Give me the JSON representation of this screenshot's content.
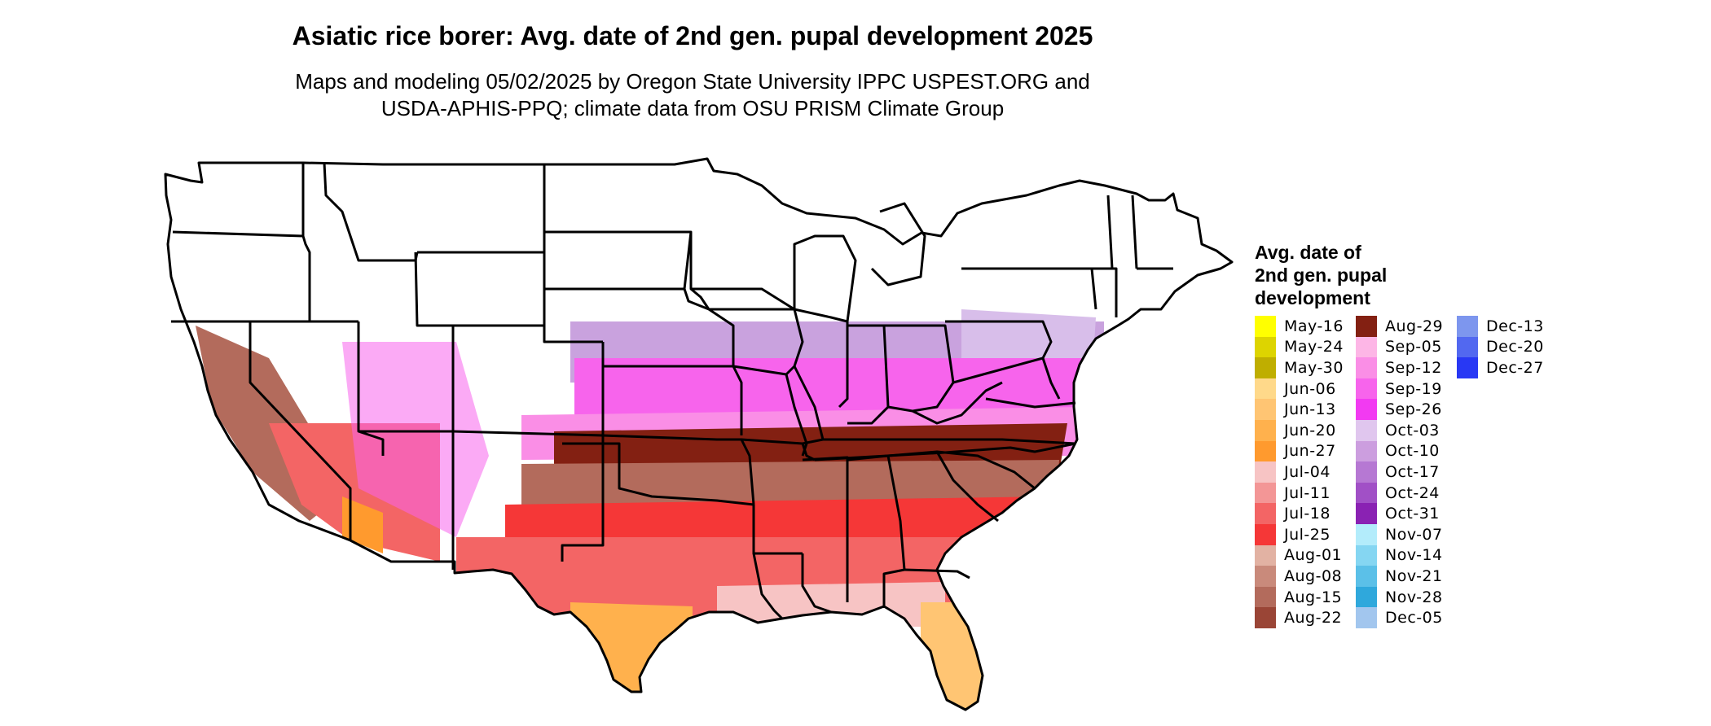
{
  "title": "Asiatic rice borer: Avg. date of 2nd gen. pupal development 2025",
  "subtitle_lines": [
    "Maps and modeling 05/02/2025 by Oregon State University IPPC USPEST.ORG and",
    "USDA-APHIS-PPQ; climate data from OSU PRISM Climate Group"
  ],
  "legend": {
    "title_lines": [
      "Avg. date of",
      "2nd gen. pupal",
      "development"
    ],
    "columns": [
      [
        {
          "label": "May-16",
          "color": "#FFFF00"
        },
        {
          "label": "May-24",
          "color": "#DDD400"
        },
        {
          "label": "May-30",
          "color": "#BFAE00"
        },
        {
          "label": "Jun-06",
          "color": "#FFD98A"
        },
        {
          "label": "Jun-13",
          "color": "#FFC573"
        },
        {
          "label": "Jun-20",
          "color": "#FFB14D"
        },
        {
          "label": "Jun-27",
          "color": "#FF9A2E"
        },
        {
          "label": "Jul-04",
          "color": "#F7C4C4"
        },
        {
          "label": "Jul-11",
          "color": "#F39696"
        },
        {
          "label": "Jul-18",
          "color": "#F36565"
        },
        {
          "label": "Jul-25",
          "color": "#F53737"
        },
        {
          "label": "Aug-01",
          "color": "#E2B2A3"
        },
        {
          "label": "Aug-08",
          "color": "#C98A7B"
        },
        {
          "label": "Aug-15",
          "color": "#B36B5C"
        },
        {
          "label": "Aug-22",
          "color": "#9A4536"
        }
      ],
      [
        {
          "label": "Aug-29",
          "color": "#832012"
        },
        {
          "label": "Sep-05",
          "color": "#FDB6E6"
        },
        {
          "label": "Sep-12",
          "color": "#FA8EE6"
        },
        {
          "label": "Sep-19",
          "color": "#F764EC"
        },
        {
          "label": "Sep-26",
          "color": "#F23AF2"
        },
        {
          "label": "Oct-03",
          "color": "#E0C6EE"
        },
        {
          "label": "Oct-10",
          "color": "#CC9EDF"
        },
        {
          "label": "Oct-17",
          "color": "#B678D3"
        },
        {
          "label": "Oct-24",
          "color": "#A150C6"
        },
        {
          "label": "Oct-31",
          "color": "#8A22B3"
        },
        {
          "label": "Nov-07",
          "color": "#B3ECFB"
        },
        {
          "label": "Nov-14",
          "color": "#85D6F2"
        },
        {
          "label": "Nov-21",
          "color": "#5BC0E8"
        },
        {
          "label": "Nov-28",
          "color": "#2FA8DC"
        },
        {
          "label": "Dec-05",
          "color": "#A2C6EE"
        }
      ],
      [
        {
          "label": "Dec-13",
          "color": "#7D96EE"
        },
        {
          "label": "Dec-20",
          "color": "#5268F0"
        },
        {
          "label": "Dec-27",
          "color": "#2838F4"
        }
      ]
    ]
  }
}
